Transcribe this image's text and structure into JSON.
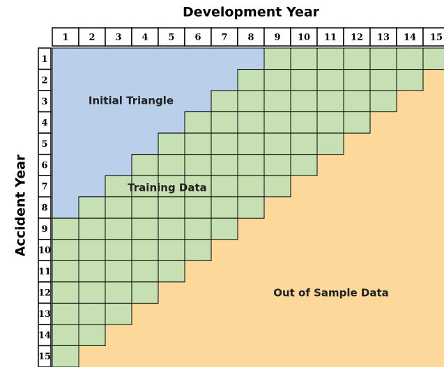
{
  "title": "Development Year",
  "y_axis_title": "Accident Year",
  "column_headers": [
    "1",
    "2",
    "3",
    "4",
    "5",
    "6",
    "7",
    "8",
    "9",
    "10",
    "11",
    "12",
    "13",
    "14",
    "15"
  ],
  "row_headers": [
    "1",
    "2",
    "3",
    "4",
    "5",
    "6",
    "7",
    "8",
    "9",
    "10",
    "11",
    "12",
    "13",
    "14",
    "15"
  ],
  "regions": {
    "initial_triangle": "Initial Triangle",
    "training_data": "Training Data",
    "out_of_sample": "Out of Sample Data"
  }
}
